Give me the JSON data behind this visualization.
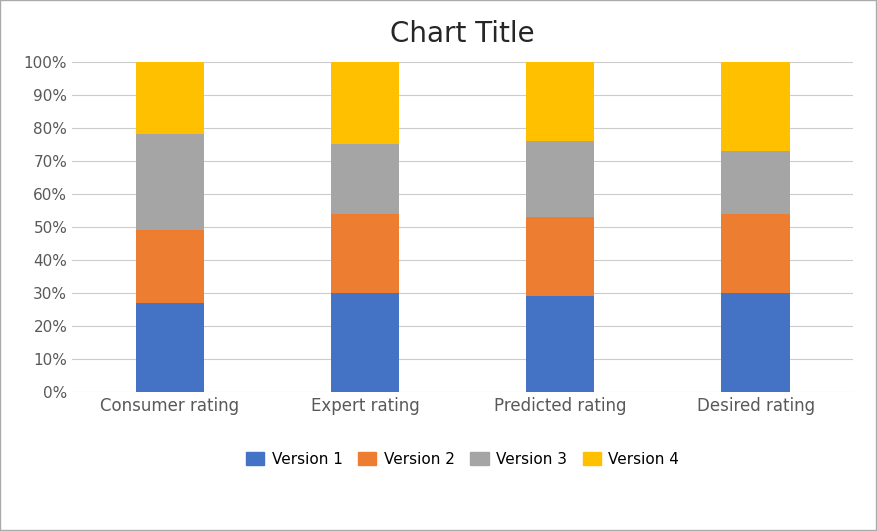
{
  "categories": [
    "Consumer rating",
    "Expert rating",
    "Predicted rating",
    "Desired rating"
  ],
  "series": {
    "Version 1": [
      27,
      30,
      29,
      30
    ],
    "Version 2": [
      22,
      24,
      24,
      24
    ],
    "Version 3": [
      29,
      21,
      23,
      19
    ],
    "Version 4": [
      22,
      25,
      24,
      27
    ]
  },
  "colors": {
    "Version 1": "#4472C4",
    "Version 2": "#ED7D31",
    "Version 3": "#A5A5A5",
    "Version 4": "#FFC000"
  },
  "title": "Chart Title",
  "title_fontsize": 20,
  "ylim": [
    0,
    100
  ],
  "ytick_labels": [
    "0%",
    "10%",
    "20%",
    "30%",
    "40%",
    "50%",
    "60%",
    "70%",
    "80%",
    "90%",
    "100%"
  ],
  "ytick_values": [
    0,
    10,
    20,
    30,
    40,
    50,
    60,
    70,
    80,
    90,
    100
  ],
  "bar_width": 0.35,
  "background_color": "#FFFFFF",
  "grid_color": "#CCCCCC",
  "legend_fontsize": 11,
  "tick_fontsize": 11,
  "category_fontsize": 12,
  "figure_border_color": "#AAAAAA"
}
